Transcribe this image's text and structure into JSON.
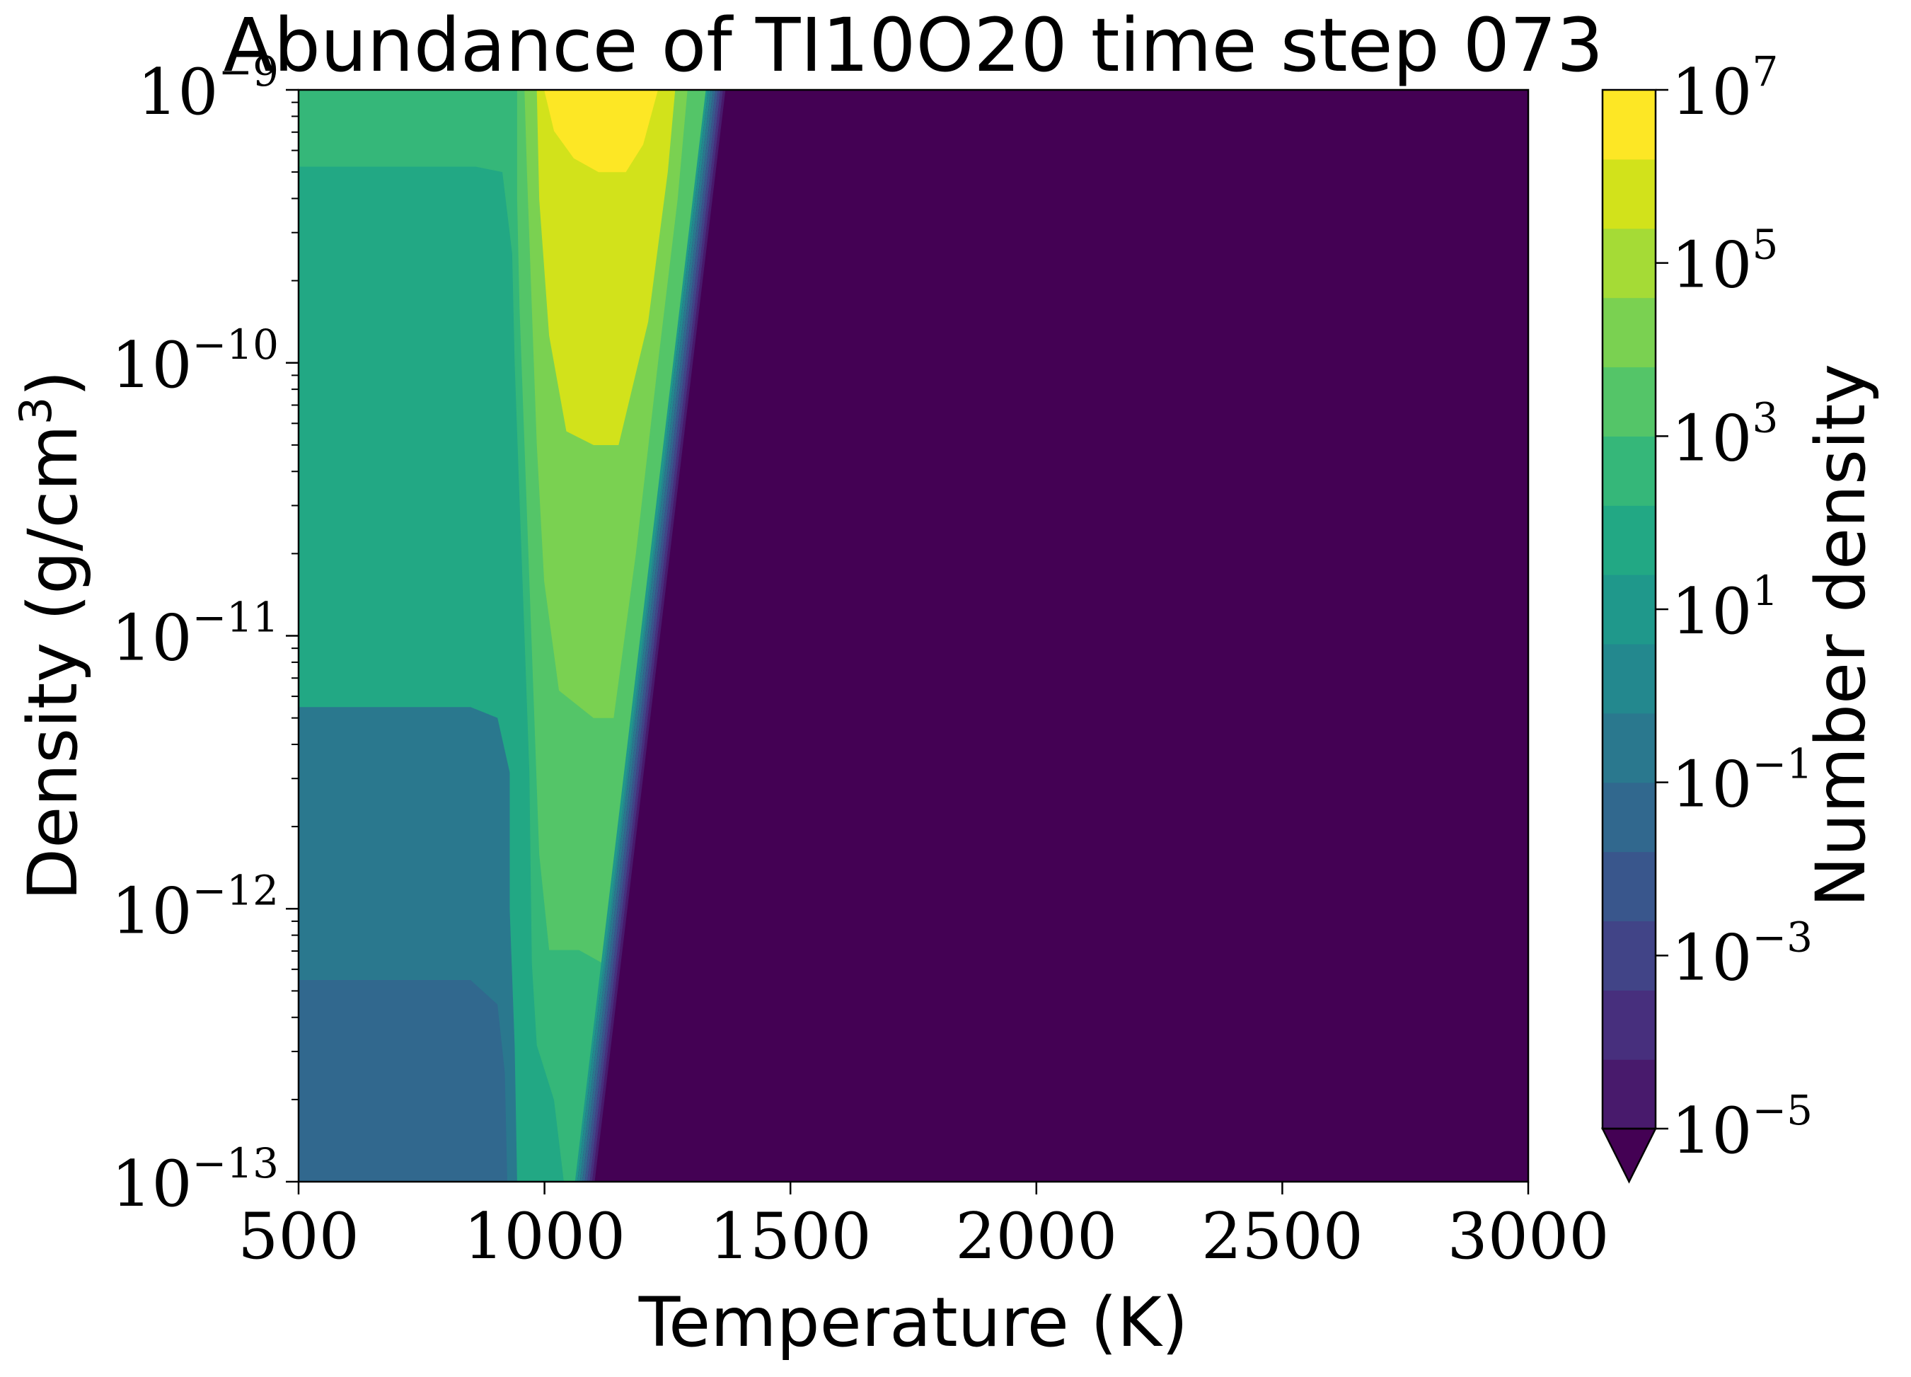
{
  "chart_data": {
    "type": "contour",
    "title": "Abundance of TI10O20 time step 073",
    "xlabel": "Temperature (K)",
    "ylabel": "Density (g/cm",
    "ylabel_sup": "3",
    "ylabel_close": ")",
    "xlim": [
      500,
      3000
    ],
    "ylim_exp": [
      -13,
      -9
    ],
    "y_scale": "log",
    "x_ticks": [
      {
        "value": 500,
        "label": "500"
      },
      {
        "value": 1000,
        "label": "1000"
      },
      {
        "value": 1500,
        "label": "1500"
      },
      {
        "value": 2000,
        "label": "2000"
      },
      {
        "value": 2500,
        "label": "2500"
      },
      {
        "value": 3000,
        "label": "3000"
      }
    ],
    "y_ticks": [
      {
        "exp": -13,
        "base": "10",
        "sup": "−13"
      },
      {
        "exp": -12,
        "base": "10",
        "sup": "−12"
      },
      {
        "exp": -11,
        "base": "10",
        "sup": "−11"
      },
      {
        "exp": -10,
        "base": "10",
        "sup": "−10"
      },
      {
        "exp": -9,
        "base": "10",
        "sup": "−9"
      }
    ],
    "colorbar": {
      "label": "Number density",
      "scale": "log",
      "level_min_exp": -5,
      "level_max_exp": 7,
      "extend": "min",
      "ticks": [
        {
          "exp": 7,
          "base": "10",
          "sup": "7"
        },
        {
          "exp": 5,
          "base": "10",
          "sup": "5"
        },
        {
          "exp": 3,
          "base": "10",
          "sup": "3"
        },
        {
          "exp": 1,
          "base": "10",
          "sup": "1"
        },
        {
          "exp": -1,
          "base": "10",
          "sup": "−1"
        },
        {
          "exp": -3,
          "base": "10",
          "sup": "−3"
        },
        {
          "exp": -5,
          "base": "10",
          "sup": "−5"
        }
      ],
      "band_colors": [
        "#481a6c",
        "#472f7d",
        "#414487",
        "#39568c",
        "#31688e",
        "#2a788e",
        "#23888e",
        "#1f988b",
        "#22a884",
        "#35b779",
        "#54c568",
        "#7ad151",
        "#a5db36",
        "#d2e21b",
        "#fde725"
      ],
      "under_color": "#440154"
    },
    "regions": [
      {
        "label": "10^-1 to 10^0",
        "color": "#31688e",
        "points": [
          [
            500,
            -13
          ],
          [
            925,
            -13
          ],
          [
            920,
            -12.6
          ],
          [
            905,
            -12.35
          ],
          [
            850,
            -12.26
          ],
          [
            500,
            -12.26
          ]
        ]
      },
      {
        "label": "10^0 to 10^1",
        "color": "#2a788e",
        "points": [
          [
            500,
            -12.26
          ],
          [
            850,
            -12.26
          ],
          [
            905,
            -12.35
          ],
          [
            920,
            -12.6
          ],
          [
            925,
            -13
          ],
          [
            945,
            -13
          ],
          [
            940,
            -12.5
          ],
          [
            930,
            -12.0
          ],
          [
            930,
            -11.5
          ],
          [
            905,
            -11.3
          ],
          [
            850,
            -11.26
          ],
          [
            500,
            -11.26
          ]
        ]
      },
      {
        "label": "10^1 to 10^2",
        "color": "#22a884",
        "points": [
          [
            500,
            -11.26
          ],
          [
            850,
            -11.26
          ],
          [
            905,
            -11.3
          ],
          [
            930,
            -11.5
          ],
          [
            930,
            -12.0
          ],
          [
            940,
            -12.5
          ],
          [
            945,
            -13
          ],
          [
            1040,
            -13
          ],
          [
            1020,
            -12.7
          ],
          [
            985,
            -12.5
          ],
          [
            975,
            -12.2
          ],
          [
            970,
            -11.5
          ],
          [
            960,
            -11.0
          ],
          [
            950,
            -10.5
          ],
          [
            940,
            -10.0
          ],
          [
            935,
            -9.6
          ],
          [
            915,
            -9.3
          ],
          [
            860,
            -9.28
          ],
          [
            500,
            -9.28
          ]
        ]
      },
      {
        "label": "10^2 to 10^3",
        "color": "#35b779",
        "points": [
          [
            500,
            -9.28
          ],
          [
            860,
            -9.28
          ],
          [
            915,
            -9.3
          ],
          [
            935,
            -9.6
          ],
          [
            940,
            -10.0
          ],
          [
            950,
            -10.5
          ],
          [
            960,
            -11.0
          ],
          [
            970,
            -11.5
          ],
          [
            975,
            -12.2
          ],
          [
            985,
            -12.5
          ],
          [
            1020,
            -12.7
          ],
          [
            1040,
            -13
          ],
          [
            1062,
            -13
          ],
          [
            1090,
            -12.6
          ],
          [
            1120,
            -12.2
          ],
          [
            1070,
            -12.15
          ],
          [
            1010,
            -12.15
          ],
          [
            990,
            -11.8
          ],
          [
            980,
            -11.3
          ],
          [
            970,
            -10.8
          ],
          [
            960,
            -10.3
          ],
          [
            950,
            -9.8
          ],
          [
            945,
            -9.4
          ],
          [
            945,
            -9
          ],
          [
            500,
            -9
          ]
        ]
      },
      {
        "label": "10^3 to 10^4",
        "color": "#54c568",
        "points": [
          [
            945,
            -9
          ],
          [
            945,
            -9.4
          ],
          [
            950,
            -9.8
          ],
          [
            960,
            -10.3
          ],
          [
            970,
            -10.8
          ],
          [
            980,
            -11.3
          ],
          [
            990,
            -11.8
          ],
          [
            1010,
            -12.15
          ],
          [
            1070,
            -12.15
          ],
          [
            1120,
            -12.2
          ],
          [
            1180,
            -11.3
          ],
          [
            1234,
            -10.5
          ],
          [
            1270,
            -9.9
          ],
          [
            1305,
            -9.35
          ],
          [
            1328,
            -9
          ],
          [
            1290,
            -9
          ],
          [
            1270,
            -9.4
          ],
          [
            1230,
            -10.0
          ],
          [
            1185,
            -10.7
          ],
          [
            1140,
            -11.3
          ],
          [
            1100,
            -11.3
          ],
          [
            1030,
            -11.2
          ],
          [
            1000,
            -10.8
          ],
          [
            985,
            -10.3
          ],
          [
            975,
            -9.8
          ],
          [
            965,
            -9.3
          ],
          [
            960,
            -9
          ]
        ]
      },
      {
        "label": "10^4 to 10^5",
        "color": "#7ad151",
        "points": [
          [
            960,
            -9
          ],
          [
            965,
            -9.3
          ],
          [
            975,
            -9.8
          ],
          [
            985,
            -10.3
          ],
          [
            1000,
            -10.8
          ],
          [
            1030,
            -11.2
          ],
          [
            1100,
            -11.3
          ],
          [
            1140,
            -11.3
          ],
          [
            1185,
            -10.7
          ],
          [
            1230,
            -10.0
          ],
          [
            1270,
            -9.4
          ],
          [
            1290,
            -9
          ],
          [
            1265,
            -9
          ],
          [
            1250,
            -9.3
          ],
          [
            1210,
            -9.85
          ],
          [
            1150,
            -10.3
          ],
          [
            1100,
            -10.3
          ],
          [
            1045,
            -10.25
          ],
          [
            1010,
            -9.9
          ],
          [
            990,
            -9.4
          ],
          [
            985,
            -9
          ]
        ]
      },
      {
        "label": "10^5 to 10^6",
        "color": "#d2e21b",
        "points": [
          [
            985,
            -9
          ],
          [
            990,
            -9.4
          ],
          [
            1010,
            -9.9
          ],
          [
            1045,
            -10.25
          ],
          [
            1100,
            -10.3
          ],
          [
            1150,
            -10.3
          ],
          [
            1210,
            -9.85
          ],
          [
            1250,
            -9.3
          ],
          [
            1265,
            -9
          ],
          [
            1230,
            -9
          ],
          [
            1200,
            -9.2
          ],
          [
            1165,
            -9.3
          ],
          [
            1110,
            -9.3
          ],
          [
            1060,
            -9.25
          ],
          [
            1020,
            -9.15
          ],
          [
            1000,
            -9
          ]
        ]
      },
      {
        "label": "10^6 to 10^7",
        "color": "#fde725",
        "points": [
          [
            1000,
            -9
          ],
          [
            1020,
            -9.15
          ],
          [
            1060,
            -9.25
          ],
          [
            1110,
            -9.3
          ],
          [
            1165,
            -9.3
          ],
          [
            1200,
            -9.2
          ],
          [
            1230,
            -9
          ]
        ]
      }
    ],
    "steep_gradient_bands": [
      {
        "color": "#1f988b"
      },
      {
        "color": "#23888e"
      },
      {
        "color": "#2a788e"
      },
      {
        "color": "#31688e"
      },
      {
        "color": "#39568c"
      },
      {
        "color": "#414487"
      },
      {
        "color": "#472f7d"
      },
      {
        "color": "#481a6c"
      }
    ]
  }
}
